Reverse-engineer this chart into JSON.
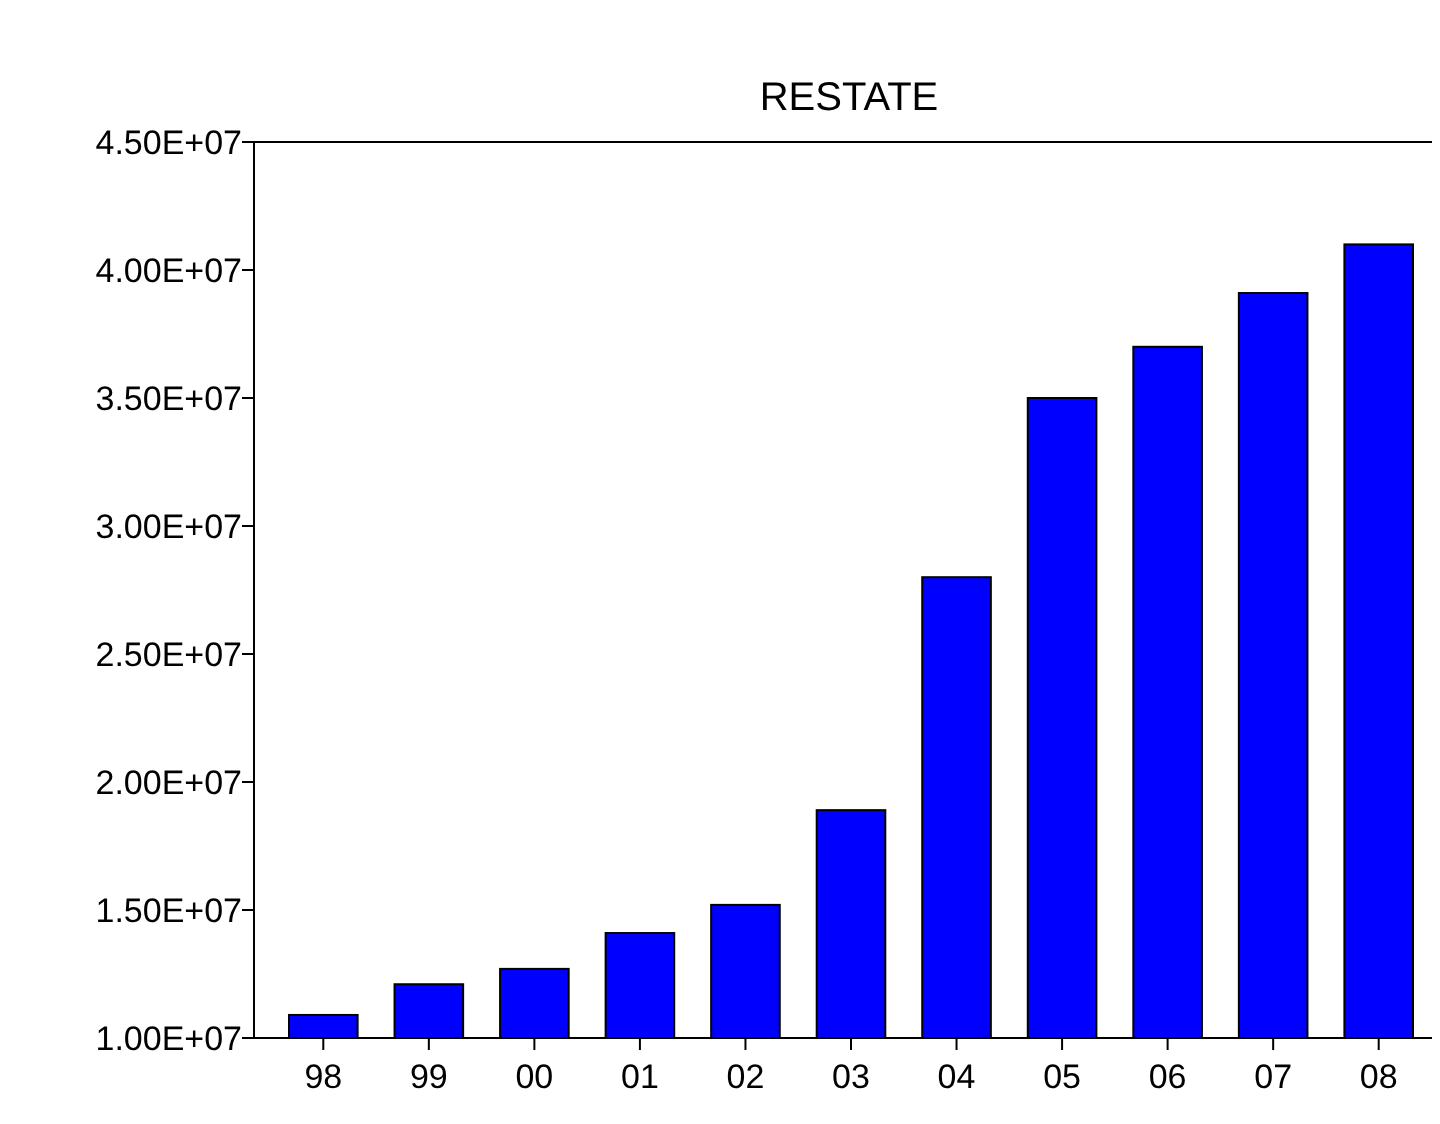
{
  "chart_data": {
    "type": "bar",
    "title": "RESTATE",
    "categories": [
      "98",
      "99",
      "00",
      "01",
      "02",
      "03",
      "04",
      "05",
      "06",
      "07",
      "08"
    ],
    "values": [
      10900000,
      12100000,
      12700000,
      14100000,
      15200000,
      18900000,
      28000000,
      35000000,
      37000000,
      39100000,
      41000000
    ],
    "color": "#0000ff",
    "ylim": [
      10000000,
      45000000
    ],
    "yticks": [
      {
        "value": 10000000,
        "label": "1.00E+07"
      },
      {
        "value": 15000000,
        "label": "1.50E+07"
      },
      {
        "value": 20000000,
        "label": "2.00E+07"
      },
      {
        "value": 25000000,
        "label": "2.50E+07"
      },
      {
        "value": 30000000,
        "label": "3.00E+07"
      },
      {
        "value": 35000000,
        "label": "3.50E+07"
      },
      {
        "value": 40000000,
        "label": "4.00E+07"
      },
      {
        "value": 45000000,
        "label": "4.50E+07"
      }
    ],
    "grid": false
  }
}
